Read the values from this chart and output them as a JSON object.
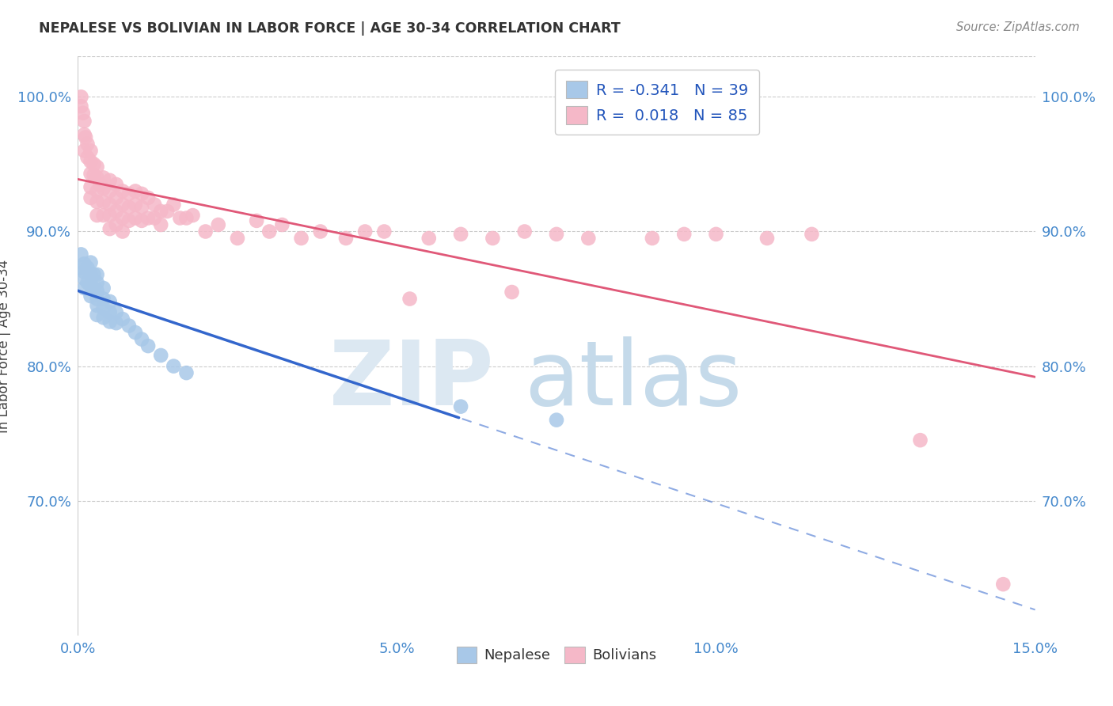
{
  "title": "NEPALESE VS BOLIVIAN IN LABOR FORCE | AGE 30-34 CORRELATION CHART",
  "source": "Source: ZipAtlas.com",
  "ylabel": "In Labor Force | Age 30-34",
  "xlim": [
    0.0,
    0.15
  ],
  "ylim": [
    0.6,
    1.03
  ],
  "yticks": [
    0.7,
    0.8,
    0.9,
    1.0
  ],
  "ytick_labels": [
    "70.0%",
    "80.0%",
    "90.0%",
    "100.0%"
  ],
  "xticks": [
    0.0,
    0.05,
    0.1,
    0.15
  ],
  "xtick_labels": [
    "0.0%",
    "5.0%",
    "10.0%",
    "15.0%"
  ],
  "nepalese_R": "-0.341",
  "nepalese_N": "39",
  "bolivian_R": "0.018",
  "bolivian_N": "85",
  "nepalese_color": "#a8c8e8",
  "bolivian_color": "#f5b8c8",
  "nepalese_line_color": "#3366cc",
  "bolivian_line_color": "#e05878",
  "background_color": "#ffffff",
  "grid_color": "#cccccc",
  "nepalese_x": [
    0.0005,
    0.0005,
    0.001,
    0.001,
    0.001,
    0.001,
    0.0015,
    0.0015,
    0.002,
    0.002,
    0.002,
    0.002,
    0.0025,
    0.0025,
    0.003,
    0.003,
    0.003,
    0.003,
    0.003,
    0.003,
    0.004,
    0.004,
    0.004,
    0.004,
    0.005,
    0.005,
    0.005,
    0.006,
    0.006,
    0.007,
    0.008,
    0.009,
    0.01,
    0.011,
    0.013,
    0.015,
    0.017,
    0.06,
    0.075
  ],
  "nepalese_y": [
    0.883,
    0.873,
    0.876,
    0.87,
    0.865,
    0.858,
    0.873,
    0.862,
    0.877,
    0.868,
    0.86,
    0.852,
    0.868,
    0.858,
    0.868,
    0.862,
    0.856,
    0.85,
    0.845,
    0.838,
    0.858,
    0.85,
    0.843,
    0.836,
    0.848,
    0.84,
    0.833,
    0.84,
    0.832,
    0.835,
    0.83,
    0.825,
    0.82,
    0.815,
    0.808,
    0.8,
    0.795,
    0.77,
    0.76
  ],
  "bolivian_x": [
    0.0005,
    0.0005,
    0.0008,
    0.001,
    0.001,
    0.001,
    0.0012,
    0.0015,
    0.0015,
    0.002,
    0.002,
    0.002,
    0.002,
    0.002,
    0.0025,
    0.0025,
    0.003,
    0.003,
    0.003,
    0.003,
    0.003,
    0.0035,
    0.004,
    0.004,
    0.004,
    0.004,
    0.005,
    0.005,
    0.005,
    0.005,
    0.005,
    0.006,
    0.006,
    0.006,
    0.006,
    0.007,
    0.007,
    0.007,
    0.007,
    0.008,
    0.008,
    0.008,
    0.009,
    0.009,
    0.009,
    0.01,
    0.01,
    0.01,
    0.011,
    0.011,
    0.012,
    0.012,
    0.013,
    0.013,
    0.014,
    0.015,
    0.016,
    0.017,
    0.018,
    0.02,
    0.022,
    0.025,
    0.028,
    0.03,
    0.032,
    0.035,
    0.038,
    0.042,
    0.045,
    0.048,
    0.052,
    0.055,
    0.06,
    0.065,
    0.068,
    0.07,
    0.075,
    0.08,
    0.09,
    0.095,
    0.1,
    0.108,
    0.115,
    0.132,
    0.145
  ],
  "bolivian_y": [
    1.0,
    0.993,
    0.988,
    0.982,
    0.972,
    0.96,
    0.97,
    0.965,
    0.955,
    0.96,
    0.952,
    0.943,
    0.933,
    0.925,
    0.95,
    0.942,
    0.948,
    0.94,
    0.93,
    0.922,
    0.912,
    0.935,
    0.94,
    0.932,
    0.922,
    0.912,
    0.938,
    0.93,
    0.92,
    0.912,
    0.902,
    0.935,
    0.925,
    0.915,
    0.905,
    0.93,
    0.92,
    0.91,
    0.9,
    0.928,
    0.918,
    0.908,
    0.93,
    0.92,
    0.91,
    0.928,
    0.918,
    0.908,
    0.925,
    0.91,
    0.92,
    0.91,
    0.915,
    0.905,
    0.915,
    0.92,
    0.91,
    0.91,
    0.912,
    0.9,
    0.905,
    0.895,
    0.908,
    0.9,
    0.905,
    0.895,
    0.9,
    0.895,
    0.9,
    0.9,
    0.85,
    0.895,
    0.898,
    0.895,
    0.855,
    0.9,
    0.898,
    0.895,
    0.895,
    0.898,
    0.898,
    0.895,
    0.898,
    0.745,
    0.638
  ]
}
